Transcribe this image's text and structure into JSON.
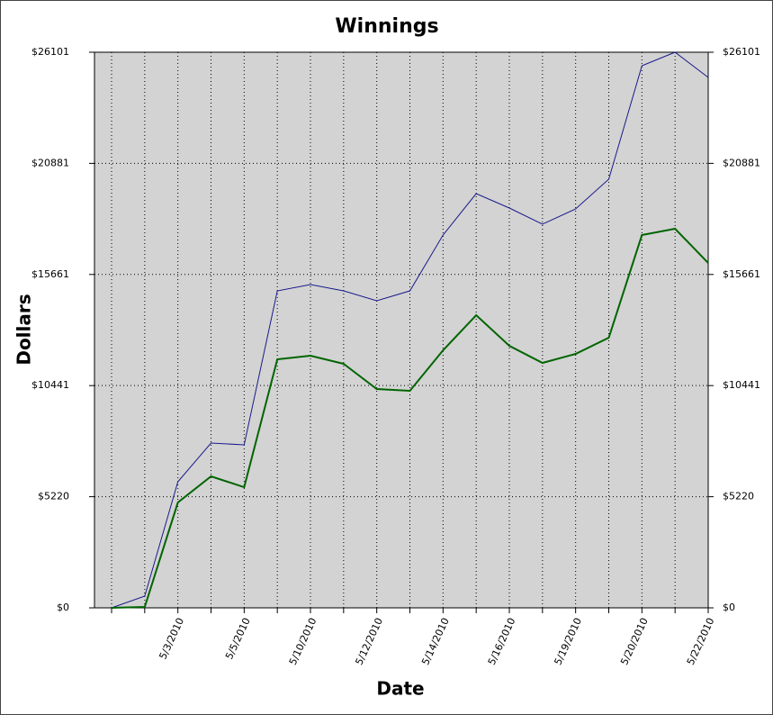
{
  "chart_data": {
    "type": "line",
    "title": "Winnings",
    "x_label": "Date",
    "y_label": "Dollars",
    "categories": [
      null,
      null,
      "5/3/2010",
      null,
      "5/5/2010",
      null,
      "5/10/2010",
      null,
      "5/12/2010",
      null,
      "5/14/2010",
      null,
      "5/16/2010",
      null,
      "5/19/2010",
      null,
      "5/20/2010",
      null,
      "5/22/2010"
    ],
    "series": [
      {
        "color": "#1a1a8c",
        "values": [
          0,
          550,
          5922,
          7741,
          7657,
          14890,
          15186,
          14890,
          14425,
          14890,
          17513,
          19459,
          18782,
          18021,
          18740,
          20136,
          25466,
          26101,
          24917
        ]
      },
      {
        "color": "#006400",
        "values": [
          0,
          42,
          4949,
          6176,
          5668,
          11675,
          11844,
          11464,
          10279,
          10194,
          12098,
          13748,
          12310,
          11506,
          11929,
          12690,
          17513,
          17809,
          16201
        ]
      }
    ],
    "ylim": [
      0,
      26101
    ],
    "yticks": [
      {
        "value": 0,
        "label": "$0"
      },
      {
        "value": 5220,
        "label": "$5220"
      },
      {
        "value": 10441,
        "label": "$10441"
      },
      {
        "value": 15661,
        "label": "$15661"
      },
      {
        "value": 20881,
        "label": "$20881"
      },
      {
        "value": 26101,
        "label": "$26101"
      }
    ],
    "grid": true
  }
}
